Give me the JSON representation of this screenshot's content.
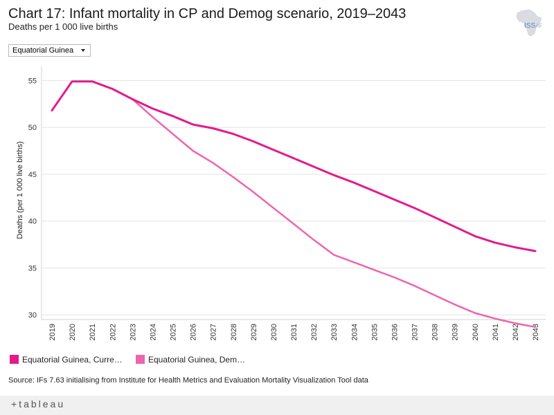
{
  "header": {
    "title": "Chart 17: Infant mortality in CP and Demog scenario, 2019–2043",
    "subtitle": "Deaths per 1 000 live births"
  },
  "logo": {
    "text": "ISS",
    "text_suffix": "AF"
  },
  "filter": {
    "selected": "Equatorial Guinea"
  },
  "chart_data": {
    "type": "line",
    "title": "Chart 17: Infant mortality in CP and Demog scenario, 2019–2043",
    "ylabel": "Deaths (per 1 000 live births)",
    "xlabel": "",
    "ylim": [
      29.5,
      56.5
    ],
    "yticks": [
      30,
      35,
      40,
      45,
      50,
      55
    ],
    "grid": true,
    "legend_position": "bottom-left",
    "categories": [
      "2019",
      "2020",
      "2021",
      "2022",
      "2023",
      "2024",
      "2025",
      "2026",
      "2027",
      "2028",
      "2029",
      "2030",
      "2031",
      "2032",
      "2033",
      "2034",
      "2035",
      "2036",
      "2037",
      "2038",
      "2039",
      "2040",
      "2041",
      "2042",
      "2043"
    ],
    "series": [
      {
        "name": "Equatorial Guinea, Curre…",
        "color": "#e5198c",
        "values": [
          51.8,
          54.9,
          54.9,
          54.1,
          53.0,
          52.0,
          51.2,
          50.3,
          49.9,
          49.3,
          48.5,
          47.6,
          46.7,
          45.8,
          44.9,
          44.1,
          43.2,
          42.3,
          41.4,
          40.4,
          39.4,
          38.4,
          37.7,
          37.2,
          36.8
        ]
      },
      {
        "name": "Equatorial Guinea, Dem…",
        "color": "#ee64ad",
        "values": [
          51.8,
          54.9,
          54.9,
          54.1,
          53.0,
          51.1,
          49.3,
          47.5,
          46.2,
          44.7,
          43.1,
          41.4,
          39.7,
          38.0,
          36.4,
          35.6,
          34.8,
          34.0,
          33.1,
          32.1,
          31.1,
          30.2,
          29.6,
          29.1,
          28.7
        ]
      }
    ]
  },
  "source": "Source: IFs 7.63 initialising from Institute for Health Metrics and Evaluation Mortality Visualization Tool data",
  "footer": {
    "brand": "+tableau"
  }
}
